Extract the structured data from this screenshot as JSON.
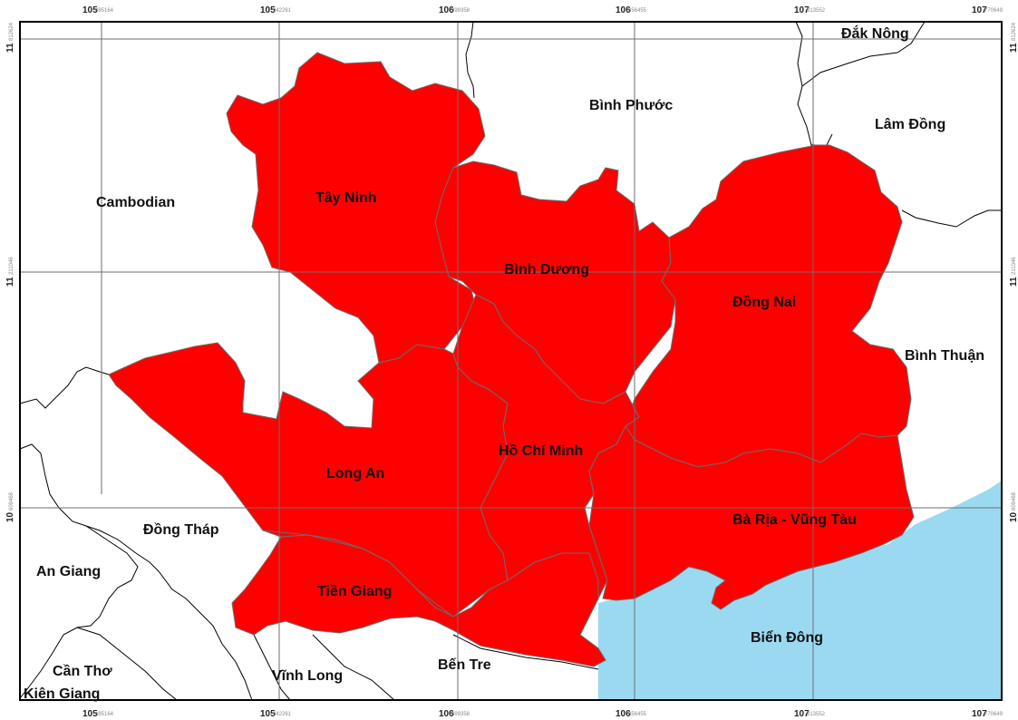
{
  "colors": {
    "region_fill": "#ff0000",
    "sea_fill": "#9bd9f1",
    "land_fill": "#ffffff",
    "grid": "#6e6e6e"
  },
  "coords": {
    "top": [
      {
        "main": "105",
        "sub": "485164"
      },
      {
        "main": "105",
        "sub": "942261"
      },
      {
        "main": "106",
        "sub": "399358"
      },
      {
        "main": "106",
        "sub": "856455"
      },
      {
        "main": "107",
        "sub": "313552"
      },
      {
        "main": "107",
        "sub": "770649"
      }
    ],
    "bottom": [
      {
        "main": "105",
        "sub": "485164"
      },
      {
        "main": "105",
        "sub": "942261"
      },
      {
        "main": "106",
        "sub": "399358"
      },
      {
        "main": "106",
        "sub": "856455"
      },
      {
        "main": "107",
        "sub": "313552"
      },
      {
        "main": "107",
        "sub": "770649"
      }
    ],
    "left": [
      {
        "main": "11",
        "sub": "812624"
      },
      {
        "main": "11",
        "sub": "211046"
      },
      {
        "main": "10",
        "sub": "609468"
      }
    ],
    "right": [
      {
        "main": "11",
        "sub": "812624"
      },
      {
        "main": "11",
        "sub": "211046"
      },
      {
        "main": "10",
        "sub": "609468"
      }
    ]
  },
  "labels": {
    "dak_nong": "Đắk Nông",
    "binh_phuoc": "Bình Phước",
    "lam_dong": "Lâm Đồng",
    "cambodian": "Cambodian",
    "tay_ninh": "Tây Ninh",
    "binh_duong": "Bình Dương",
    "dong_nai": "Đồng Nai",
    "binh_thuan": "Bình Thuận",
    "ho_chi_minh": "Hồ Chí Minh",
    "long_an": "Long An",
    "ba_ria_vung_tau": "Bà Rịa - Vũng Tàu",
    "dong_thap": "Đồng Tháp",
    "an_giang": "An Giang",
    "tien_giang": "Tiền Giang",
    "bien_dong": "Biển Đông",
    "can_tho": "Cần Thơ",
    "kien_giang": "Kiên Giang",
    "vinh_long": "Vĩnh Long",
    "ben_tre": "Bến Tre"
  }
}
